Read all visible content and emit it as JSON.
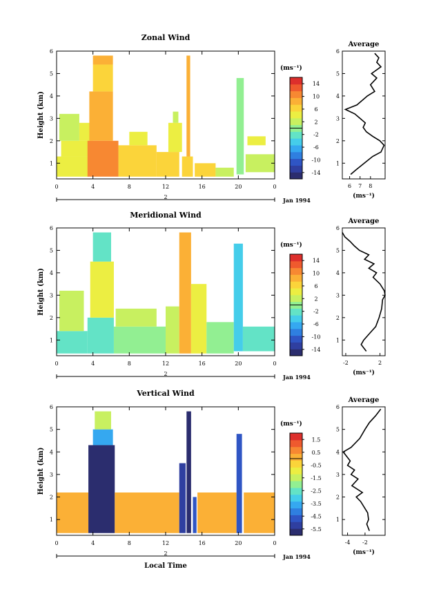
{
  "colormap": [
    "#2b2d6e",
    "#2f3fa0",
    "#2f55c4",
    "#2f7fe0",
    "#35a8f0",
    "#45cdea",
    "#63e3c6",
    "#92ef92",
    "#c8f060",
    "#ecee42",
    "#fbd43a",
    "#fbb036",
    "#f78832",
    "#ef5a2e",
    "#dd2f2c"
  ],
  "x_ticks": [
    "0",
    "4",
    "8",
    "12",
    "16",
    "20",
    "0"
  ],
  "date_label": "Jan 1994",
  "day_label": "2",
  "x_axis_label": "Local Time",
  "chart_data": [
    {
      "type": "heatmap",
      "title": "Zonal Wind",
      "ylabel": "Height (km)",
      "yticks": [
        "1",
        "2",
        "3",
        "4",
        "5",
        "6"
      ],
      "ylim": [
        0.3,
        6
      ],
      "xlim": [
        0,
        24
      ],
      "colorbar": {
        "unit": "(ms⁻¹)",
        "ticks": [
          "14",
          "10",
          "6",
          "2",
          "-2",
          "-6",
          "-10",
          "-14"
        ],
        "range": [
          -16,
          16
        ]
      },
      "cells": [
        {
          "t0": 0,
          "t1": 3.5,
          "z0": 0.4,
          "z1": 1.3,
          "v": 5
        },
        {
          "t0": 0.5,
          "t1": 3.5,
          "z0": 1.3,
          "z1": 2.0,
          "v": 4
        },
        {
          "t0": 0.3,
          "t1": 2.5,
          "z0": 2.0,
          "z1": 3.2,
          "v": 3
        },
        {
          "t0": 2.5,
          "t1": 4,
          "z0": 2.0,
          "z1": 2.8,
          "v": 5
        },
        {
          "t0": 3.4,
          "t1": 6.8,
          "z0": 0.4,
          "z1": 2.0,
          "v": 10
        },
        {
          "t0": 3.6,
          "t1": 6.2,
          "z0": 2.0,
          "z1": 4.2,
          "v": 8
        },
        {
          "t0": 4,
          "t1": 6.2,
          "z0": 4.2,
          "z1": 5.4,
          "v": 6
        },
        {
          "t0": 4,
          "t1": 6.2,
          "z0": 5.4,
          "z1": 5.8,
          "v": 8
        },
        {
          "t0": 6.8,
          "t1": 11,
          "z0": 0.4,
          "z1": 1.8,
          "v": 7
        },
        {
          "t0": 8,
          "t1": 10,
          "z0": 1.8,
          "z1": 2.4,
          "v": 5
        },
        {
          "t0": 11,
          "t1": 13.5,
          "z0": 0.4,
          "z1": 1.5,
          "v": 6
        },
        {
          "t0": 12.3,
          "t1": 13.8,
          "z0": 1.5,
          "z1": 2.8,
          "v": 5
        },
        {
          "t0": 12.8,
          "t1": 13.4,
          "z0": 2.8,
          "z1": 3.3,
          "v": 2
        },
        {
          "t0": 13.8,
          "t1": 15.0,
          "z0": 0.4,
          "z1": 1.3,
          "v": 7
        },
        {
          "t0": 14.3,
          "t1": 14.7,
          "z0": 1.3,
          "z1": 5.8,
          "v": 8
        },
        {
          "t0": 15.2,
          "t1": 17.5,
          "z0": 0.4,
          "z1": 1.0,
          "v": 7
        },
        {
          "t0": 17.5,
          "t1": 19.5,
          "z0": 0.4,
          "z1": 0.8,
          "v": 3
        },
        {
          "t0": 19.8,
          "t1": 20.6,
          "z0": 0.5,
          "z1": 4.8,
          "v": 1
        },
        {
          "t0": 20.8,
          "t1": 24,
          "z0": 0.6,
          "z1": 1.4,
          "v": 3
        },
        {
          "t0": 21,
          "t1": 23,
          "z0": 1.8,
          "z1": 2.2,
          "v": 4
        }
      ],
      "profile": {
        "xlim": [
          5.3,
          9.4
        ],
        "xticks": [
          "6",
          "7",
          "8"
        ],
        "xtick_vals": [
          6,
          7,
          8
        ],
        "ylim": [
          0.3,
          6
        ],
        "xlabel": "(ms⁻¹)",
        "title": "Average",
        "x": [
          6.1,
          6.6,
          7.4,
          8.2,
          9.0,
          9.3,
          8.9,
          8.2,
          7.6,
          7.3,
          7.5,
          7.0,
          6.5,
          5.6,
          6.7,
          7.7,
          8.4,
          8.0,
          8.6,
          8.1,
          9.0,
          8.6,
          8.8,
          8.4
        ],
        "z": [
          0.5,
          0.7,
          1.0,
          1.3,
          1.5,
          1.8,
          2.0,
          2.2,
          2.4,
          2.6,
          2.8,
          3.0,
          3.2,
          3.4,
          3.6,
          4.0,
          4.2,
          4.5,
          4.8,
          5.0,
          5.3,
          5.5,
          5.7,
          5.9
        ]
      }
    },
    {
      "type": "heatmap",
      "title": "Meridional Wind",
      "ylabel": "Height (km)",
      "yticks": [
        "1",
        "2",
        "3",
        "4",
        "5",
        "6"
      ],
      "ylim": [
        0.3,
        6
      ],
      "xlim": [
        0,
        24
      ],
      "colorbar": {
        "unit": "(ms⁻¹)",
        "ticks": [
          "14",
          "10",
          "6",
          "2",
          "-2",
          "-6",
          "-10",
          "-14"
        ],
        "range": [
          -16,
          16
        ]
      },
      "cells": [
        {
          "t0": 0,
          "t1": 3.4,
          "z0": 0.4,
          "z1": 1.4,
          "v": -3
        },
        {
          "t0": 0.3,
          "t1": 3,
          "z0": 1.4,
          "z1": 3.2,
          "v": 2
        },
        {
          "t0": 3.4,
          "t1": 6.3,
          "z0": 0.4,
          "z1": 2.0,
          "v": -2
        },
        {
          "t0": 3.7,
          "t1": 6.3,
          "z0": 2.0,
          "z1": 4.5,
          "v": 4
        },
        {
          "t0": 4,
          "t1": 6,
          "z0": 4.5,
          "z1": 5.8,
          "v": -3
        },
        {
          "t0": 6.3,
          "t1": 12,
          "z0": 0.4,
          "z1": 1.6,
          "v": 0
        },
        {
          "t0": 6.5,
          "t1": 11,
          "z0": 1.6,
          "z1": 2.4,
          "v": 2
        },
        {
          "t0": 12,
          "t1": 13.5,
          "z0": 0.4,
          "z1": 2.5,
          "v": 3
        },
        {
          "t0": 13.5,
          "t1": 14.8,
          "z0": 0.4,
          "z1": 5.8,
          "v": 8
        },
        {
          "t0": 14.8,
          "t1": 16.5,
          "z0": 0.4,
          "z1": 3.5,
          "v": 5
        },
        {
          "t0": 16.5,
          "t1": 19.5,
          "z0": 0.4,
          "z1": 1.8,
          "v": 0
        },
        {
          "t0": 19.5,
          "t1": 20.5,
          "z0": 0.5,
          "z1": 5.3,
          "v": -4
        },
        {
          "t0": 20.5,
          "t1": 24,
          "z0": 0.5,
          "z1": 1.6,
          "v": -2
        }
      ],
      "profile": {
        "xlim": [
          -2.4,
          2.6
        ],
        "xticks": [
          "-2",
          "2"
        ],
        "xtick_vals": [
          -2,
          2
        ],
        "ylim": [
          0.3,
          6
        ],
        "xlabel": "(ms⁻¹)",
        "title": "Average",
        "x": [
          0.4,
          -0.2,
          0.1,
          0.8,
          1.5,
          1.9,
          2.2,
          2.3,
          2.6,
          2.5,
          2.0,
          1.2,
          1.6,
          0.7,
          1.3,
          0.2,
          0.7,
          -0.4,
          -1.0,
          -1.5,
          -2.1,
          -2.4
        ],
        "z": [
          0.5,
          0.8,
          1.0,
          1.3,
          1.6,
          2.0,
          2.4,
          2.8,
          3.0,
          3.2,
          3.5,
          3.8,
          4.0,
          4.2,
          4.4,
          4.6,
          4.8,
          5.0,
          5.2,
          5.4,
          5.6,
          5.8
        ]
      }
    },
    {
      "type": "heatmap",
      "title": "Vertical Wind",
      "ylabel": "Height (km)",
      "yticks": [
        "1",
        "2",
        "3",
        "4",
        "5",
        "6"
      ],
      "ylim": [
        0.3,
        6
      ],
      "xlim": [
        0,
        24
      ],
      "colorbar": {
        "unit": "(ms⁻¹)",
        "ticks": [
          "1.5",
          "0.5",
          "-0.5",
          "-1.5",
          "-2.5",
          "-3.5",
          "-4.5",
          "-5.5"
        ],
        "range": [
          -6,
          2
        ]
      },
      "cells": [
        {
          "t0": 0,
          "t1": 3.5,
          "z0": 0.4,
          "z1": 2.2,
          "v": 0.3
        },
        {
          "t0": 3.5,
          "t1": 6.4,
          "z0": 0.4,
          "z1": 4.3,
          "v": -5.8
        },
        {
          "t0": 4,
          "t1": 6.2,
          "z0": 4.3,
          "z1": 5.0,
          "v": -3.5
        },
        {
          "t0": 4.2,
          "t1": 6.0,
          "z0": 5.0,
          "z1": 5.8,
          "v": -1.5
        },
        {
          "t0": 6.4,
          "t1": 13.5,
          "z0": 0.4,
          "z1": 2.2,
          "v": 0.3
        },
        {
          "t0": 13.5,
          "t1": 14.2,
          "z0": 0.4,
          "z1": 3.5,
          "v": -5.0
        },
        {
          "t0": 14.3,
          "t1": 14.8,
          "z0": 0.4,
          "z1": 5.8,
          "v": -5.5
        },
        {
          "t0": 15.0,
          "t1": 15.4,
          "z0": 0.4,
          "z1": 2.0,
          "v": -4.5
        },
        {
          "t0": 15.5,
          "t1": 19.8,
          "z0": 0.4,
          "z1": 2.2,
          "v": 0.3
        },
        {
          "t0": 19.8,
          "t1": 20.4,
          "z0": 0.4,
          "z1": 4.8,
          "v": -4.8
        },
        {
          "t0": 20.6,
          "t1": 24,
          "z0": 0.4,
          "z1": 2.2,
          "v": 0.2
        }
      ],
      "profile": {
        "xlim": [
          -4.6,
          0.3
        ],
        "xticks": [
          "-4",
          "-2"
        ],
        "xtick_vals": [
          -4,
          -2
        ],
        "ylim": [
          0.3,
          6
        ],
        "xlabel": "(ms⁻¹)",
        "title": "Average",
        "x": [
          -1.5,
          -1.8,
          -1.6,
          -1.7,
          -2.5,
          -3.0,
          -2.3,
          -3.5,
          -2.8,
          -3.6,
          -3.2,
          -4.0,
          -3.7,
          -4.5,
          -3.6,
          -2.6,
          -2.0,
          -1.5,
          -0.8,
          -0.2
        ],
        "z": [
          0.5,
          0.8,
          1.0,
          1.3,
          1.8,
          2.0,
          2.2,
          2.5,
          2.8,
          3.0,
          3.2,
          3.4,
          3.6,
          4.0,
          4.2,
          4.6,
          5.0,
          5.3,
          5.6,
          5.9
        ]
      }
    }
  ]
}
